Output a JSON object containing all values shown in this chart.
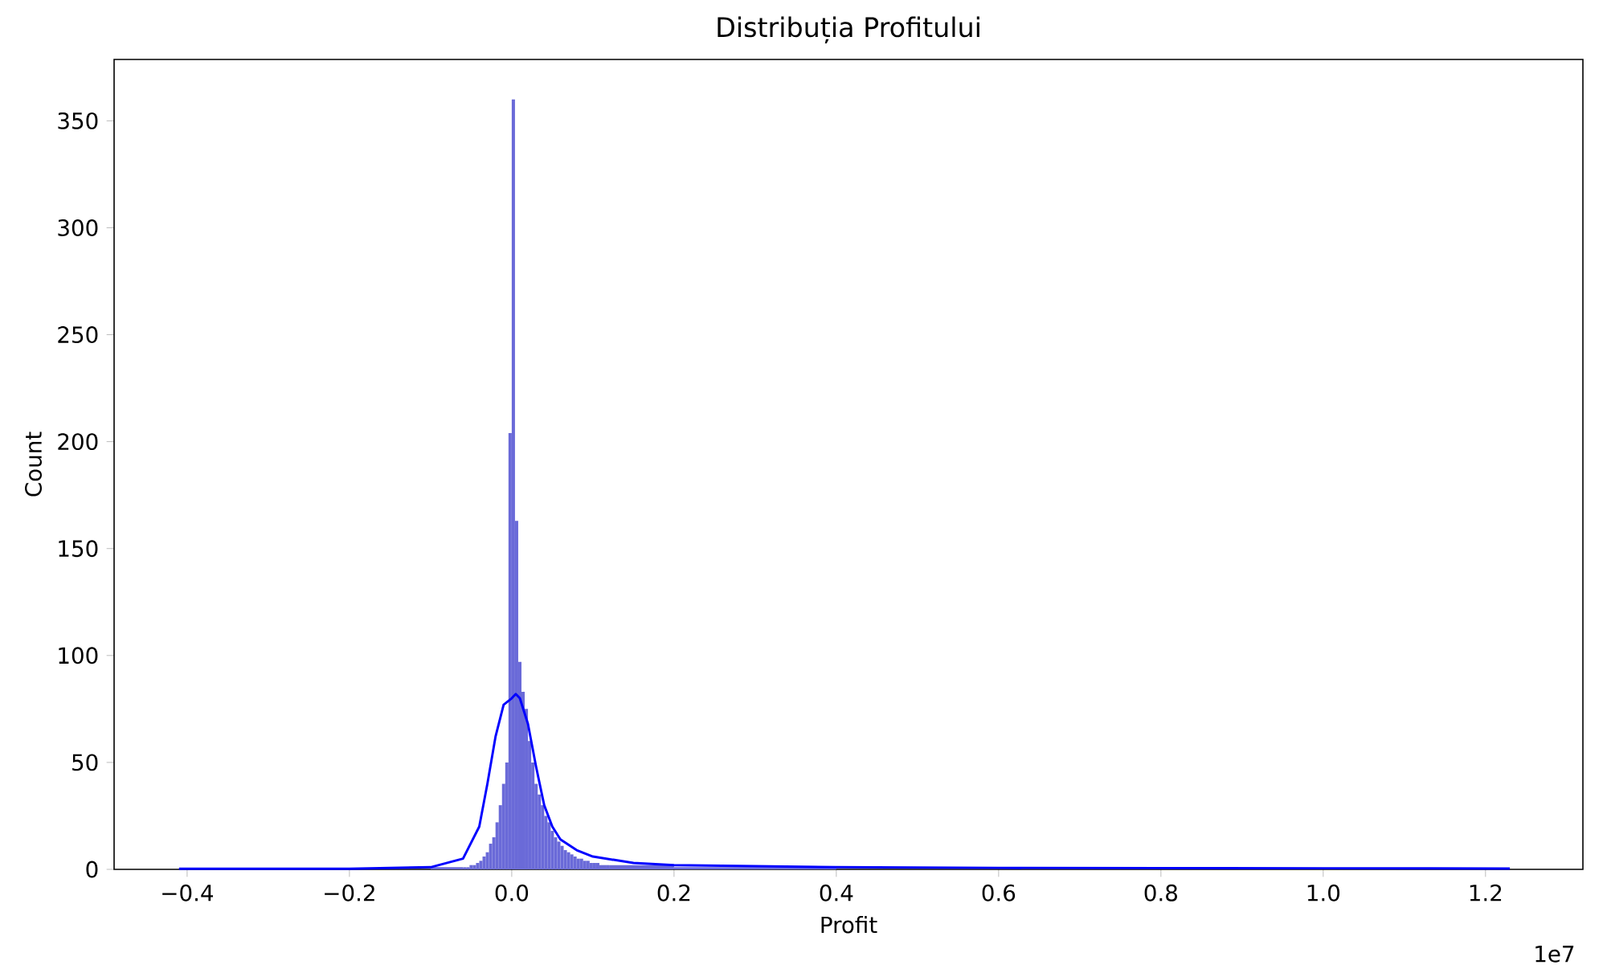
{
  "chart_data": {
    "type": "histogram",
    "title": "Distribuția Profitului",
    "xlabel": "Profit",
    "ylabel": "Count",
    "xlim": [
      -0.49,
      1.32
    ],
    "ylim": [
      0,
      378.7
    ],
    "xticks": [
      {
        "value": -0.4,
        "label": "−0.4"
      },
      {
        "value": -0.2,
        "label": "−0.2"
      },
      {
        "value": 0,
        "label": "0.0"
      },
      {
        "value": 0.2,
        "label": "0.2"
      },
      {
        "value": 0.4,
        "label": "0.4"
      },
      {
        "value": 0.6,
        "label": "0.6"
      },
      {
        "value": 0.8,
        "label": "0.8"
      },
      {
        "value": 1.0,
        "label": "1.0"
      },
      {
        "value": 1.2,
        "label": "1.2"
      }
    ],
    "yticks": [
      0,
      50,
      100,
      150,
      200,
      250,
      300,
      350
    ],
    "annotations": [
      "1e7"
    ],
    "series": [
      {
        "color": "#6a6ad8",
        "bins": [
          -0.1,
          -0.06,
          -0.056,
          -0.052,
          -0.048,
          -0.044,
          -0.04,
          -0.036,
          -0.032,
          -0.028,
          -0.024,
          -0.02,
          -0.016,
          -0.012,
          -0.008,
          -0.004,
          0.0,
          0.004,
          0.008,
          0.012,
          0.016,
          0.02,
          0.024,
          0.028,
          0.032,
          0.036,
          0.04,
          0.044,
          0.048,
          0.052,
          0.056,
          0.06,
          0.064,
          0.068,
          0.072,
          0.076,
          0.08,
          0.084,
          0.088,
          0.092,
          0.096,
          0.1,
          0.104,
          0.108,
          0.112,
          0.116,
          0.12,
          0.2,
          0.4
        ],
        "values": [
          1,
          1,
          1,
          2,
          2,
          3,
          4,
          6,
          8,
          12,
          15,
          22,
          30,
          40,
          50,
          204,
          360,
          163,
          97,
          83,
          75,
          60,
          50,
          40,
          35,
          30,
          25,
          22,
          18,
          15,
          13,
          11,
          9,
          8,
          7,
          6,
          5,
          5,
          4,
          4,
          3,
          3,
          3,
          2,
          2,
          2,
          2,
          1
        ]
      },
      {
        "type": "line",
        "color": "#0000ff",
        "x": [
          -0.41,
          -0.2,
          -0.1,
          -0.06,
          -0.04,
          -0.03,
          -0.02,
          -0.01,
          0.0,
          0.005,
          0.01,
          0.02,
          0.03,
          0.04,
          0.05,
          0.06,
          0.08,
          0.1,
          0.15,
          0.2,
          0.3,
          0.4,
          0.6,
          0.8,
          1.0,
          1.23
        ],
        "values": [
          0.3,
          0.3,
          1,
          5,
          20,
          40,
          62,
          77,
          80,
          82,
          80,
          68,
          48,
          30,
          20,
          14,
          9,
          6,
          3,
          2,
          1.5,
          1,
          0.7,
          0.6,
          0.5,
          0.4
        ]
      }
    ]
  }
}
